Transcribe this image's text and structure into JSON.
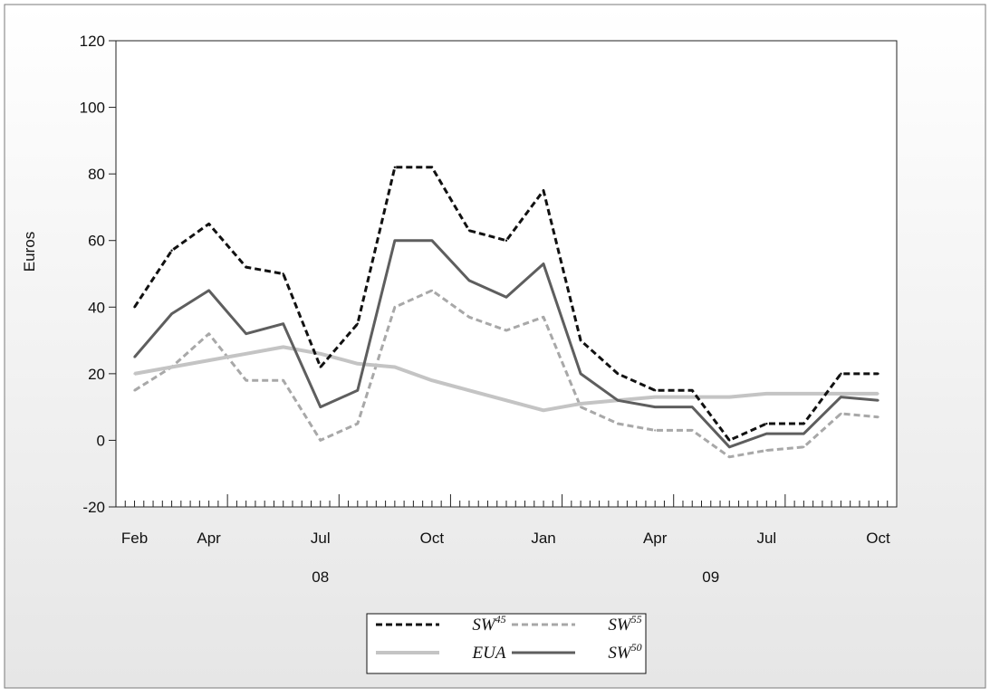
{
  "chart_data": {
    "type": "line",
    "title": "",
    "xlabel": "",
    "ylabel": "Euros",
    "ylim": [
      -20,
      120
    ],
    "yticks": [
      "-20",
      "0",
      "20",
      "40",
      "60",
      "80",
      "100",
      "120"
    ],
    "x_month_ticks": [
      "Feb",
      "Apr",
      "Jul",
      "Oct",
      "Jan",
      "Apr",
      "Jul",
      "Oct"
    ],
    "x_year_labels": [
      "08",
      "09"
    ],
    "grid": false,
    "legend_position": "bottom-center",
    "legend": [
      {
        "base": "SW",
        "sup": "45"
      },
      {
        "base": "SW",
        "sup": "55"
      },
      {
        "base": "EUA",
        "sup": ""
      },
      {
        "base": "SW",
        "sup": "50"
      }
    ],
    "x": [
      "2008-02",
      "2008-03",
      "2008-04",
      "2008-05",
      "2008-06",
      "2008-07",
      "2008-08",
      "2008-09",
      "2008-10",
      "2008-11",
      "2008-12",
      "2009-01",
      "2009-02",
      "2009-03",
      "2009-04",
      "2009-05",
      "2009-06",
      "2009-07",
      "2009-08",
      "2009-09",
      "2009-10"
    ],
    "series": [
      {
        "name": "SW45",
        "color": "#111111",
        "dash": "dashed",
        "values": [
          40,
          57,
          65,
          52,
          50,
          22,
          35,
          82,
          82,
          63,
          60,
          75,
          30,
          20,
          15,
          15,
          0,
          5,
          5,
          20,
          20
        ]
      },
      {
        "name": "SW55",
        "color": "#a8a8a8",
        "dash": "dashed",
        "values": [
          15,
          22,
          32,
          18,
          18,
          0,
          5,
          40,
          45,
          37,
          33,
          37,
          10,
          5,
          3,
          3,
          -5,
          -3,
          -2,
          8,
          7
        ]
      },
      {
        "name": "EUA",
        "color": "#c4c4c4",
        "dash": "solid",
        "values": [
          20,
          22,
          24,
          26,
          28,
          26,
          23,
          22,
          18,
          15,
          12,
          9,
          11,
          12,
          13,
          13,
          13,
          14,
          14,
          14,
          14
        ]
      },
      {
        "name": "SW50",
        "color": "#5e5e5e",
        "dash": "solid",
        "values": [
          25,
          38,
          45,
          32,
          35,
          10,
          15,
          60,
          60,
          48,
          43,
          53,
          20,
          12,
          10,
          10,
          -2,
          2,
          2,
          13,
          12
        ]
      }
    ]
  }
}
